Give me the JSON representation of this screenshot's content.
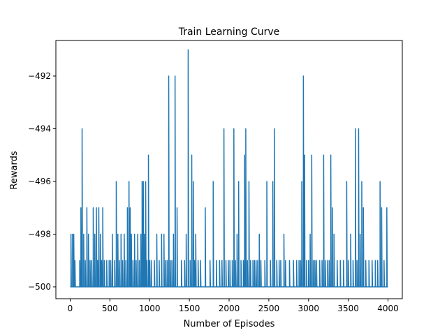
{
  "chart_data": {
    "type": "line",
    "title": "Train Learning Curve",
    "xlabel": "Number of Episodes",
    "ylabel": "Rewards",
    "xlim": [
      -180,
      4180
    ],
    "ylim": [
      -500.45,
      -490.65
    ],
    "xticks": [
      0,
      500,
      1000,
      1500,
      2000,
      2500,
      3000,
      3500,
      4000
    ],
    "yticks": [
      -500,
      -498,
      -496,
      -494,
      -492
    ],
    "xtick_labels": [
      "0",
      "500",
      "1000",
      "1500",
      "2000",
      "2500",
      "3000",
      "3500",
      "4000"
    ],
    "ytick_labels": [
      "−500",
      "−498",
      "−496",
      "−494",
      "−492"
    ],
    "grid": false,
    "legend": "none",
    "line_color": "#1f77b4",
    "baseline": -500,
    "n_episodes": 4000,
    "spikes": [
      [
        10,
        -498
      ],
      [
        30,
        -498
      ],
      [
        45,
        -498
      ],
      [
        60,
        -499
      ],
      [
        120,
        -499
      ],
      [
        135,
        -497
      ],
      [
        150,
        -494
      ],
      [
        170,
        -498
      ],
      [
        190,
        -499
      ],
      [
        210,
        -497
      ],
      [
        230,
        -498
      ],
      [
        250,
        -499
      ],
      [
        270,
        -499
      ],
      [
        290,
        -497
      ],
      [
        310,
        -498
      ],
      [
        330,
        -497
      ],
      [
        345,
        -499
      ],
      [
        360,
        -497
      ],
      [
        380,
        -498
      ],
      [
        395,
        -499
      ],
      [
        410,
        -497
      ],
      [
        430,
        -499
      ],
      [
        460,
        -499
      ],
      [
        490,
        -499
      ],
      [
        510,
        -499
      ],
      [
        530,
        -498
      ],
      [
        560,
        -499
      ],
      [
        580,
        -496
      ],
      [
        600,
        -498
      ],
      [
        620,
        -499
      ],
      [
        640,
        -498
      ],
      [
        660,
        -499
      ],
      [
        680,
        -498
      ],
      [
        700,
        -499
      ],
      [
        720,
        -497
      ],
      [
        740,
        -496
      ],
      [
        755,
        -497
      ],
      [
        770,
        -498
      ],
      [
        790,
        -499
      ],
      [
        810,
        -498
      ],
      [
        830,
        -499
      ],
      [
        850,
        -498
      ],
      [
        870,
        -499
      ],
      [
        890,
        -498
      ],
      [
        905,
        -496
      ],
      [
        920,
        -496
      ],
      [
        935,
        -498
      ],
      [
        950,
        -496
      ],
      [
        965,
        -499
      ],
      [
        985,
        -495
      ],
      [
        1000,
        -499
      ],
      [
        1020,
        -499
      ],
      [
        1060,
        -499
      ],
      [
        1090,
        -498
      ],
      [
        1120,
        -499
      ],
      [
        1150,
        -498
      ],
      [
        1180,
        -498
      ],
      [
        1200,
        -499
      ],
      [
        1220,
        -499
      ],
      [
        1240,
        -492
      ],
      [
        1260,
        -499
      ],
      [
        1280,
        -499
      ],
      [
        1300,
        -498
      ],
      [
        1320,
        -492
      ],
      [
        1345,
        -497
      ],
      [
        1400,
        -499
      ],
      [
        1440,
        -499
      ],
      [
        1460,
        -498
      ],
      [
        1485,
        -491
      ],
      [
        1510,
        -499
      ],
      [
        1530,
        -495
      ],
      [
        1550,
        -496
      ],
      [
        1565,
        -499
      ],
      [
        1580,
        -498
      ],
      [
        1610,
        -499
      ],
      [
        1640,
        -499
      ],
      [
        1700,
        -497
      ],
      [
        1760,
        -499
      ],
      [
        1800,
        -496
      ],
      [
        1840,
        -499
      ],
      [
        1880,
        -499
      ],
      [
        1910,
        -499
      ],
      [
        1935,
        -494
      ],
      [
        1960,
        -499
      ],
      [
        1990,
        -499
      ],
      [
        2010,
        -499
      ],
      [
        2040,
        -499
      ],
      [
        2060,
        -494
      ],
      [
        2080,
        -499
      ],
      [
        2100,
        -498
      ],
      [
        2120,
        -496
      ],
      [
        2150,
        -499
      ],
      [
        2180,
        -499
      ],
      [
        2195,
        -495
      ],
      [
        2210,
        -494
      ],
      [
        2230,
        -499
      ],
      [
        2250,
        -496
      ],
      [
        2270,
        -499
      ],
      [
        2300,
        -499
      ],
      [
        2320,
        -499
      ],
      [
        2340,
        -499
      ],
      [
        2360,
        -499
      ],
      [
        2380,
        -498
      ],
      [
        2400,
        -499
      ],
      [
        2450,
        -499
      ],
      [
        2475,
        -496
      ],
      [
        2520,
        -499
      ],
      [
        2550,
        -496
      ],
      [
        2570,
        -494
      ],
      [
        2600,
        -499
      ],
      [
        2630,
        -499
      ],
      [
        2650,
        -499
      ],
      [
        2690,
        -498
      ],
      [
        2710,
        -499
      ],
      [
        2760,
        -499
      ],
      [
        2810,
        -499
      ],
      [
        2850,
        -499
      ],
      [
        2880,
        -499
      ],
      [
        2900,
        -499
      ],
      [
        2915,
        -496
      ],
      [
        2935,
        -492
      ],
      [
        2950,
        -495
      ],
      [
        2975,
        -499
      ],
      [
        3000,
        -499
      ],
      [
        3020,
        -498
      ],
      [
        3040,
        -495
      ],
      [
        3060,
        -499
      ],
      [
        3080,
        -499
      ],
      [
        3100,
        -499
      ],
      [
        3140,
        -499
      ],
      [
        3170,
        -499
      ],
      [
        3190,
        -495
      ],
      [
        3210,
        -499
      ],
      [
        3240,
        -499
      ],
      [
        3260,
        -499
      ],
      [
        3280,
        -495
      ],
      [
        3300,
        -497
      ],
      [
        3320,
        -498
      ],
      [
        3360,
        -499
      ],
      [
        3400,
        -499
      ],
      [
        3440,
        -499
      ],
      [
        3480,
        -496
      ],
      [
        3500,
        -499
      ],
      [
        3530,
        -498
      ],
      [
        3560,
        -499
      ],
      [
        3590,
        -494
      ],
      [
        3610,
        -499
      ],
      [
        3630,
        -494
      ],
      [
        3650,
        -498
      ],
      [
        3670,
        -496
      ],
      [
        3690,
        -497
      ],
      [
        3720,
        -499
      ],
      [
        3760,
        -499
      ],
      [
        3800,
        -499
      ],
      [
        3840,
        -499
      ],
      [
        3870,
        -499
      ],
      [
        3900,
        -496
      ],
      [
        3920,
        -497
      ],
      [
        3950,
        -499
      ],
      [
        3985,
        -497
      ]
    ]
  }
}
